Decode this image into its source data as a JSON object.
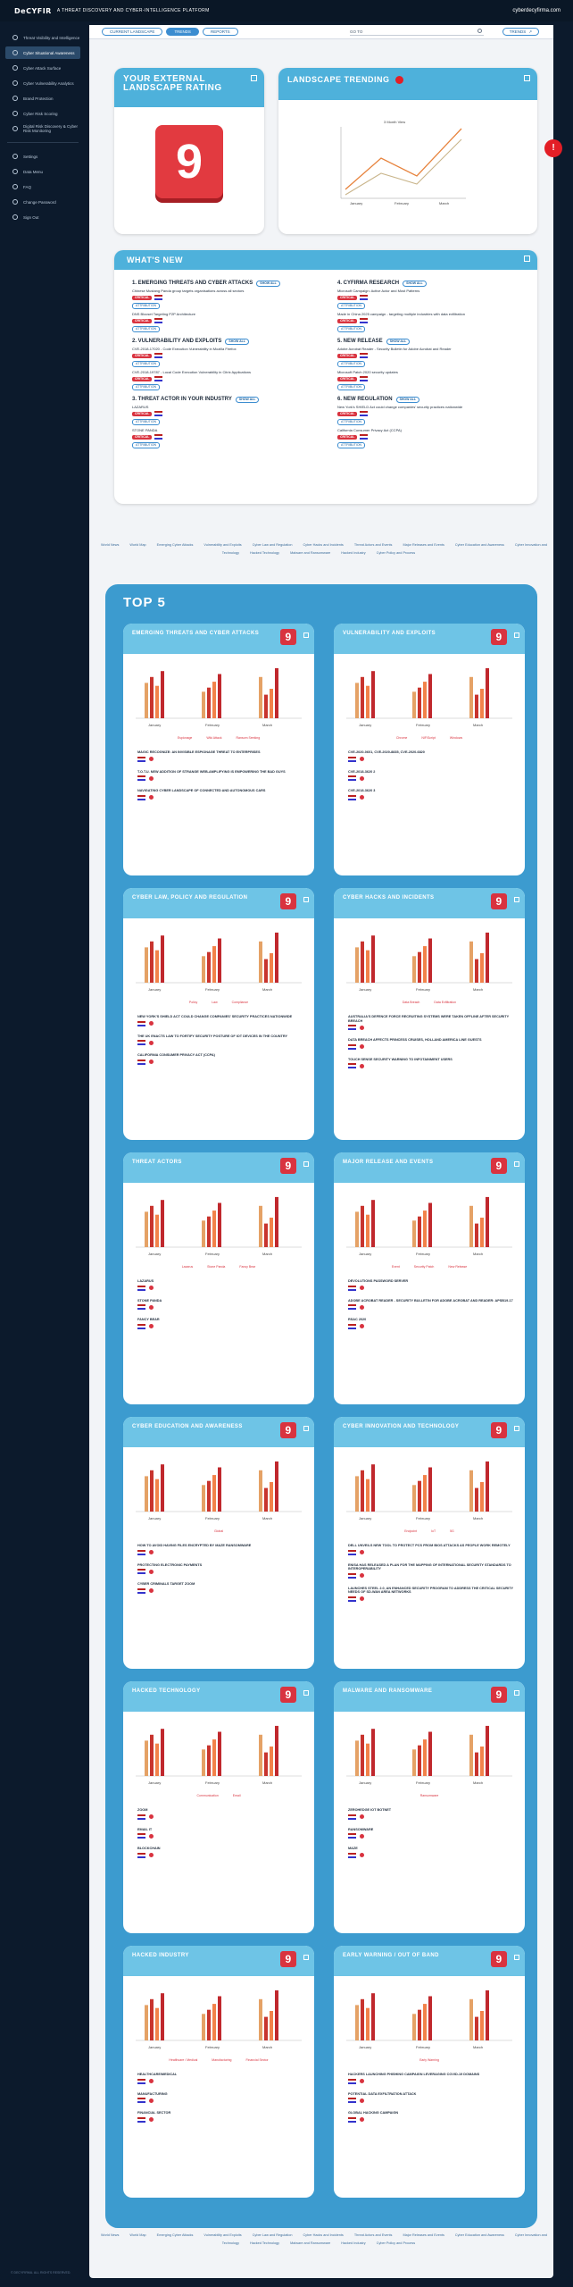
{
  "header": {
    "brand": "DeCYFIR",
    "tagline": "A THREAT DISCOVERY AND CYBER-INTELLIGENCE PLATFORM",
    "site": "cyberdecyfirma.com"
  },
  "sidebar": {
    "items": [
      {
        "label": "Threat Visibility and Intelligence"
      },
      {
        "label": "Cyber Situational Awareness"
      },
      {
        "label": "Cyber Attack Surface"
      },
      {
        "label": "Cyber Vulnerability Analytics"
      },
      {
        "label": "Brand Protection"
      },
      {
        "label": "Cyber Risk Scoring"
      },
      {
        "label": "Digital Risk Discovery & Cyber Risk Monitoring"
      }
    ],
    "bottom": [
      {
        "label": "Settings"
      },
      {
        "label": "Data Menu"
      },
      {
        "label": "FAQ"
      },
      {
        "label": "Change Password"
      },
      {
        "label": "Sign Out"
      }
    ],
    "copyright": "© DECYFIRMA. ALL RIGHTS RESERVED."
  },
  "nav": {
    "tabs": [
      {
        "label": "CURRENT LANDSCAPE"
      },
      {
        "label": "TRENDS"
      },
      {
        "label": "REPORTS"
      }
    ],
    "goto": "GO TO",
    "trends_btn": "TRENDS"
  },
  "rating": {
    "title": "YOUR EXTERNAL LANDSCAPE RATING",
    "value": "9"
  },
  "trending": {
    "title": "LANDSCAPE TRENDING",
    "chart_title": "3 Month View",
    "months": [
      "January",
      "February",
      "March"
    ]
  },
  "whatsnew": {
    "title": "WHAT'S NEW",
    "show_all": "SHOW ALL",
    "attribution": "ATTRIBUTION",
    "col1": [
      {
        "h": "1. EMERGING THREATS AND CYBER ATTACKS",
        "lines": [
          "Chinese Mustang Panda group targets organisations across all sectors",
          "DNS Blocset Targeting P2P Architecture"
        ]
      },
      {
        "h": "2. VULNERABILITY AND EXPLOITS",
        "lines": [
          "CVE-2018-17020 - Code Execution Vulnerability in Mozilla Firefox",
          "CVE-2018-19787 - Local Code Execution Vulnerability in Citrix Applications"
        ]
      },
      {
        "h": "3. THREAT ACTOR IN YOUR INDUSTRY",
        "lines": [
          "LAZARUS",
          "STONE PANDA"
        ]
      }
    ],
    "col2": [
      {
        "h": "4. CYFIRMA RESEARCH",
        "lines": [
          "Microsoft Campaign: Active Actor and Most Patterns",
          "Made in China 2025 campaign - targeting multiple industries with data exfiltration"
        ]
      },
      {
        "h": "5. NEW RELEASE",
        "lines": [
          "Adobe Acrobat Reader - Security Bulletin for Adobe Acrobat and Reader",
          "Microsoft Patch 2020 security updates"
        ]
      },
      {
        "h": "6. NEW REGULATION",
        "lines": [
          "New York's SHIELD Act could change companies' security practices nationwide",
          "California Consumer Privacy Act (CCPA)"
        ]
      }
    ]
  },
  "links": [
    "World News",
    "World Map",
    "Emerging Cyber Attacks",
    "Vulnerability and Exploits",
    "Cyber Law and Regulation",
    "Cyber Hacks and Incidents",
    "Threat Actors and Events",
    "Major Releases and Events",
    "Cyber Education and Awareness",
    "Cyber Innovation and Technology",
    "Hacked Technology",
    "Malware and Ransomware",
    "Hacked Industry",
    "Cyber Policy and Process"
  ],
  "top5": {
    "title": "TOP 5",
    "cards": [
      {
        "title": "EMERGING THREATS AND CYBER ATTACKS",
        "legend": [
          "Espionage",
          "Wiki Attack",
          "Ransom Seeking"
        ],
        "items": [
          "MAGIC RECOGNIZE: AN INVISIBLE ESPIONAGE THREAT TO ENTERPRISES",
          "T.O.T.U. NEW ADDITION OF STRANGE WEB-AMPLIFYING IS EMPOWERING THE BAD GUYS",
          "NAVIGATING CYBER LANDSCAPE OF CONNECTED AND AUTONOMOUS CARS"
        ]
      },
      {
        "title": "VULNERABILITY AND EXPLOITS",
        "legend": [
          "Chrome",
          "NIF/Script",
          "Windows"
        ],
        "items": [
          "CVE-2020-0601, CVE-2020-8835, CVE-2020-6820",
          "CVE-2018-3620 2",
          "CVE-2018-3620 3"
        ]
      },
      {
        "title": "CYBER LAW, POLICY AND REGULATION",
        "legend": [
          "Policy",
          "Law",
          "Compliance"
        ],
        "items": [
          "NEW YORK'S SHIELD ACT COULD CHANGE COMPANIES' SECURITY PRACTICES NATIONWIDE",
          "THE UK ENACTS LAW TO FORTIFY SECURITY POSTURE OF IOT DEVICES IN THE COUNTRY",
          "CALIFORNIA CONSUMER PRIVACY ACT (CCPA)"
        ]
      },
      {
        "title": "CYBER HACKS AND INCIDENTS",
        "legend": [
          "Data Breach",
          "Data Exfiltration"
        ],
        "items": [
          "AUSTRALIA'S DEFENCE FORCE RECRUITING SYSTEMS WERE TAKEN OFFLINE AFTER SECURITY BREACH",
          "DATA BREACH AFFECTS PRINCESS CRUISES, HOLLAND AMERICA LINE GUESTS",
          "TOUCH SENSE SECURITY WARNING TO INFOTAINMENT USERS"
        ]
      },
      {
        "title": "THREAT ACTORS",
        "legend": [
          "Lazarus",
          "Stone Panda",
          "Fancy Bear"
        ],
        "items": [
          "LAZARUS",
          "STONE PANDA",
          "FANCY BEAR"
        ]
      },
      {
        "title": "MAJOR RELEASE AND EVENTS",
        "legend": [
          "Event",
          "Security Patch",
          "New Release"
        ],
        "items": [
          "DEVOLUTIONS PASSWORD SERVER",
          "ADOBE ACROBAT READER - SECURITY BULLETIN FOR ADOBE ACROBAT AND READER: APSB19-17",
          "RSAC 2020"
        ]
      },
      {
        "title": "CYBER EDUCATION AND AWARENESS",
        "legend": [
          "Global"
        ],
        "items": [
          "HOW TO AVOID HAVING FILES ENCRYPTED BY MAZE RANSOMWARE",
          "PROTECTING ELECTRONIC PAYMENTS",
          "CYBER CRIMINALS TARGET ZOOM"
        ]
      },
      {
        "title": "CYBER INNOVATION AND TECHNOLOGY",
        "legend": [
          "Endpoint",
          "IoT",
          "5G"
        ],
        "items": [
          "DELL UNVEILS NEW TOOL TO PROTECT PCS FROM BIOS ATTACKS AS PEOPLE WORK REMOTELY",
          "ENISA HAS RELEASED A PLAN FOR THE MAPPING OF INTERNATIONAL SECURITY STANDARDS TO INTEROPERABILITY",
          "LAUNCHES STEEL 2.0, AN ENHANCED SECURITY PROGRAM TO ADDRESS THE CRITICAL SECURITY NEEDS OF SD-WAN AREA NETWORKS"
        ]
      },
      {
        "title": "HACKED TECHNOLOGY",
        "legend": [
          "Communication",
          "Email"
        ],
        "items": [
          "ZOOM",
          "EMAIL IT",
          "BLOCKCHAIN"
        ]
      },
      {
        "title": "MALWARE AND RANSOMWARE",
        "legend": [
          "Ransomware"
        ],
        "items": [
          "ZEROHEDGE IOT BOTNET",
          "RANSOMWARE",
          "MAZE"
        ]
      },
      {
        "title": "HACKED INDUSTRY",
        "legend": [
          "Healthcare / Medical",
          "Manufacturing",
          "Financial Sector"
        ],
        "items": [
          "HEALTHCARE/MEDICAL",
          "MANUFACTURING",
          "FINANCIAL SECTOR"
        ]
      },
      {
        "title": "EARLY WARNING / OUT OF BAND",
        "legend": [
          "Early Warning"
        ],
        "items": [
          "HACKERS LAUNCHING PHISHING CAMPAIGN LEVERAGING COVID-19 DOMAINS",
          "POTENTIAL DATA EXFILTRATION ATTACK",
          "GLOBAL HACKING CAMPAIGN"
        ]
      }
    ]
  },
  "chart_data": {
    "type": "bar",
    "categories": [
      "January",
      "February",
      "March"
    ],
    "series": [
      {
        "values": [
          60,
          45,
          70
        ]
      },
      {
        "values": [
          70,
          52,
          40
        ]
      },
      {
        "values": [
          55,
          62,
          50
        ]
      },
      {
        "values": [
          80,
          75,
          85
        ]
      }
    ],
    "ylim": [
      0,
      100
    ]
  }
}
